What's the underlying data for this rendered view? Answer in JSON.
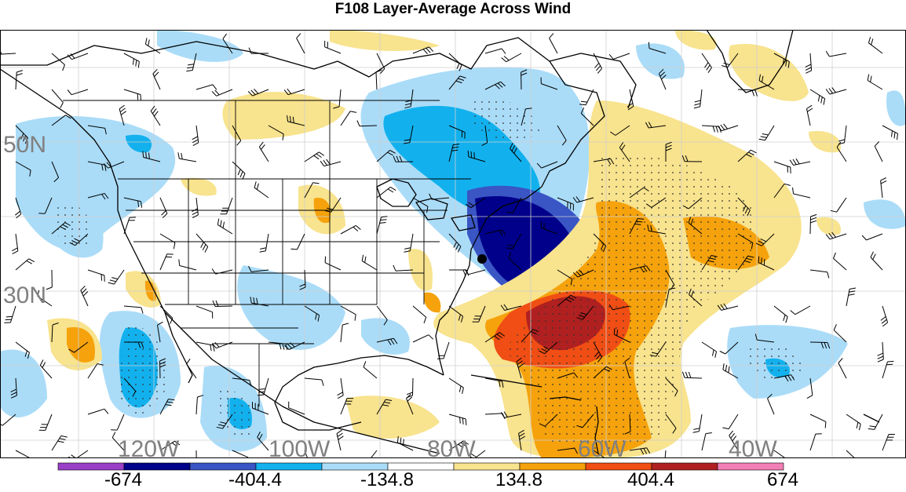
{
  "title": "F108 Layer-Average Across Wind",
  "latitude_labels": [
    "50N",
    "30N"
  ],
  "longitude_labels": [
    "120W",
    "100W",
    "80W",
    "60W",
    "40W"
  ],
  "colorbar": {
    "tick_labels": [
      "-674",
      "-404.4",
      "-134.8",
      "134.8",
      "404.4",
      "674"
    ],
    "colors": [
      "#9a3fc8",
      "#00008b",
      "#3a55c4",
      "#12b1ee",
      "#aadcf8",
      "#ffffff",
      "#f8e38e",
      "#f5a20c",
      "#f04e14",
      "#b02020",
      "#f27fb6"
    ]
  },
  "colors": {
    "ocean": "#ffffff",
    "coast": "#000000",
    "grid": "#cfcfcf",
    "label_gray": "#808080"
  }
}
